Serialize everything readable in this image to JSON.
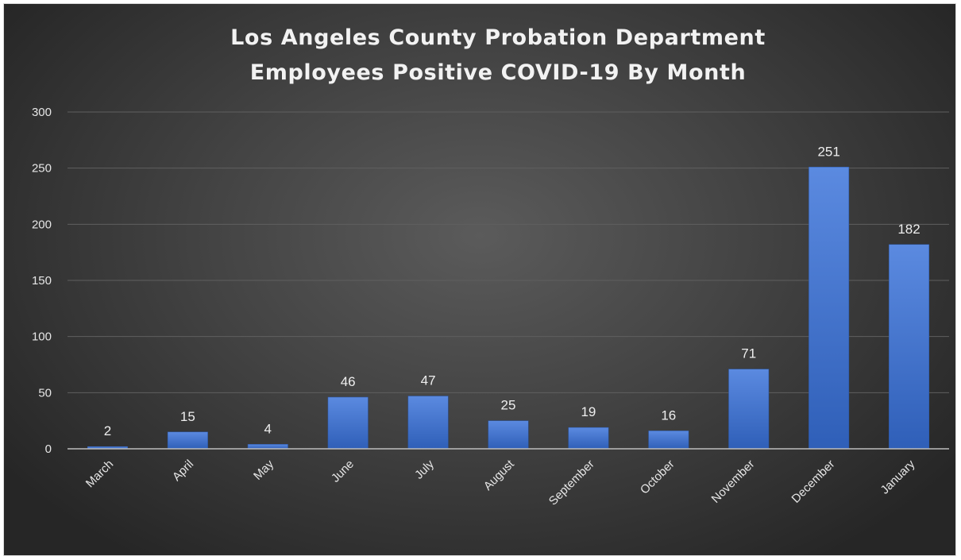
{
  "chart_data": {
    "type": "bar",
    "title_lines": [
      "Los Angeles County Probation Department",
      "Employees Positive COVID-19 By Month"
    ],
    "categories": [
      "March",
      "April",
      "May",
      "June",
      "July",
      "August",
      "September",
      "October",
      "November",
      "December",
      "January"
    ],
    "values": [
      2,
      15,
      4,
      46,
      47,
      25,
      19,
      16,
      71,
      251,
      182
    ],
    "data_labels": [
      "2",
      "15",
      "4",
      "46",
      "47",
      "25",
      "19",
      "16",
      "71",
      "251",
      "182"
    ],
    "y_ticks": [
      0,
      50,
      100,
      150,
      200,
      250,
      300
    ],
    "ylim": [
      0,
      300
    ],
    "grid": true,
    "legend": "none",
    "bar_color": "#4472c4",
    "background_color": "#3f3f3f"
  }
}
